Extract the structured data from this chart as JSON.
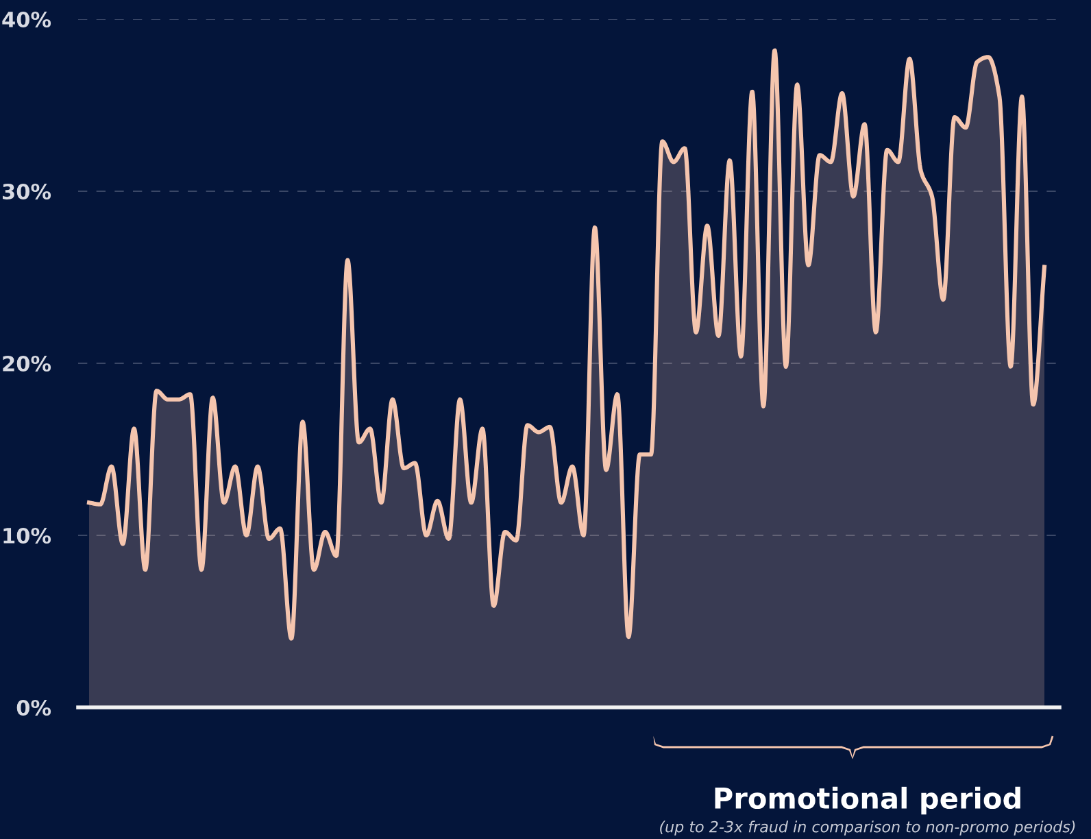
{
  "chart_data": {
    "type": "area",
    "categories": [
      null,
      null,
      null,
      null,
      null,
      null,
      null,
      null,
      null,
      null,
      null,
      null,
      null,
      null,
      null,
      null,
      null,
      null,
      null,
      null,
      null,
      null,
      null,
      null,
      null,
      null,
      null,
      null,
      null,
      null,
      null,
      null,
      null,
      null,
      null,
      null,
      null,
      null,
      null,
      null,
      null,
      null,
      null,
      null,
      null,
      null,
      null,
      null,
      null,
      null,
      null,
      null,
      null,
      null,
      null,
      null,
      null,
      null,
      null,
      null,
      null,
      null,
      null,
      null,
      null,
      null,
      null,
      null,
      null,
      null,
      null,
      null,
      null,
      null,
      null,
      null,
      null,
      null,
      null,
      null,
      null,
      null,
      null,
      null,
      null,
      null
    ],
    "series": [
      {
        "color": "#f5c5ae",
        "values": [
          11.9,
          11.8,
          14.0,
          9.5,
          16.2,
          8.0,
          18.4,
          17.9,
          17.9,
          18.2,
          8.0,
          18.0,
          11.9,
          14.0,
          10.0,
          14.0,
          9.8,
          10.4,
          4.0,
          16.6,
          8.0,
          10.2,
          8.8,
          26.0,
          15.4,
          16.2,
          11.9,
          17.9,
          13.9,
          14.2,
          10.0,
          12.0,
          9.8,
          17.9,
          11.9,
          16.2,
          5.9,
          10.2,
          9.7,
          16.4,
          16.0,
          16.3,
          11.9,
          14.0,
          10.0,
          27.9,
          13.8,
          18.2,
          4.1,
          14.7,
          14.7,
          32.9,
          31.7,
          32.5,
          21.8,
          28.0,
          21.6,
          31.8,
          20.4,
          35.8,
          17.5,
          38.2,
          19.8,
          36.2,
          25.7,
          32.1,
          31.7,
          35.7,
          29.7,
          33.9,
          21.8,
          32.4,
          31.7,
          37.7,
          31.2,
          29.7,
          23.7,
          34.3,
          33.7,
          37.5,
          37.8,
          35.5,
          19.8,
          35.5,
          17.6,
          25.6
        ]
      }
    ],
    "ylim": [
      0,
      40
    ],
    "yticks": [
      {
        "value": 0,
        "label": "0%"
      },
      {
        "value": 10,
        "label": "10%"
      },
      {
        "value": 20,
        "label": "20%"
      },
      {
        "value": 30,
        "label": "30%"
      },
      {
        "value": 40,
        "label": "40%"
      }
    ],
    "grid": "y",
    "annotations": [
      "Promotional period",
      "(up to 2-3x fraud in comparison to non-promo periods)"
    ]
  }
}
